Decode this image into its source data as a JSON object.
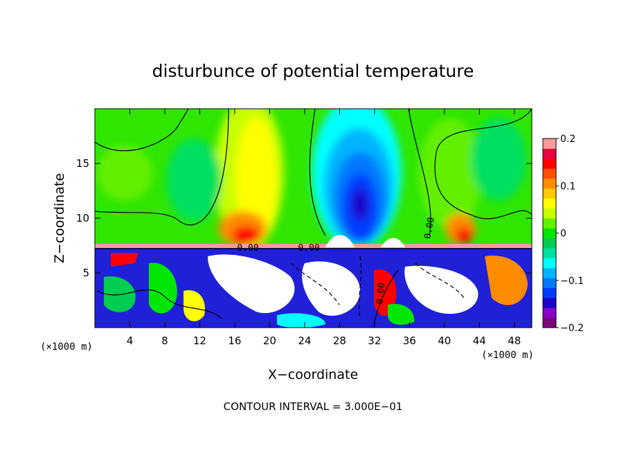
{
  "chart_data": {
    "type": "heatmap",
    "title": "disturbunce of potential temperature",
    "xlabel": "X−coordinate",
    "ylabel": "Z−coordinate",
    "x_unit_left": "(×1000 m)",
    "x_unit_right": "(×1000 m)",
    "x_ticks": [
      "4",
      "8",
      "12",
      "16",
      "20",
      "24",
      "28",
      "32",
      "36",
      "40",
      "44",
      "48"
    ],
    "x_tick_values": [
      4,
      8,
      12,
      16,
      20,
      24,
      28,
      32,
      36,
      40,
      44,
      48
    ],
    "y_ticks": [
      "5",
      "10",
      "15"
    ],
    "y_tick_values": [
      5,
      10,
      15
    ],
    "xlim": [
      0,
      50
    ],
    "ylim": [
      0,
      20
    ],
    "colorbar": {
      "ticks": [
        "0.2",
        "0.1",
        "0",
        "−0.1",
        "−0.2"
      ],
      "tick_values": [
        0.2,
        0.1,
        0,
        -0.1,
        -0.2
      ],
      "range": [
        -0.2,
        0.2
      ],
      "colors": [
        "#7f007f",
        "#8a00c8",
        "#1e00c8",
        "#003cff",
        "#0078ff",
        "#00b4ff",
        "#00ffff",
        "#00e0a0",
        "#00cc50",
        "#00e600",
        "#64f000",
        "#c8ff00",
        "#ffff00",
        "#ffc800",
        "#ff8c00",
        "#ff5000",
        "#ff0000",
        "#e6003c",
        "#ff9b9b"
      ]
    },
    "contour_labels": [
      "0.00",
      "0.00",
      "0.00",
      "0.00"
    ],
    "footer": "CONTOUR INTERVAL = 3.000E−01"
  }
}
